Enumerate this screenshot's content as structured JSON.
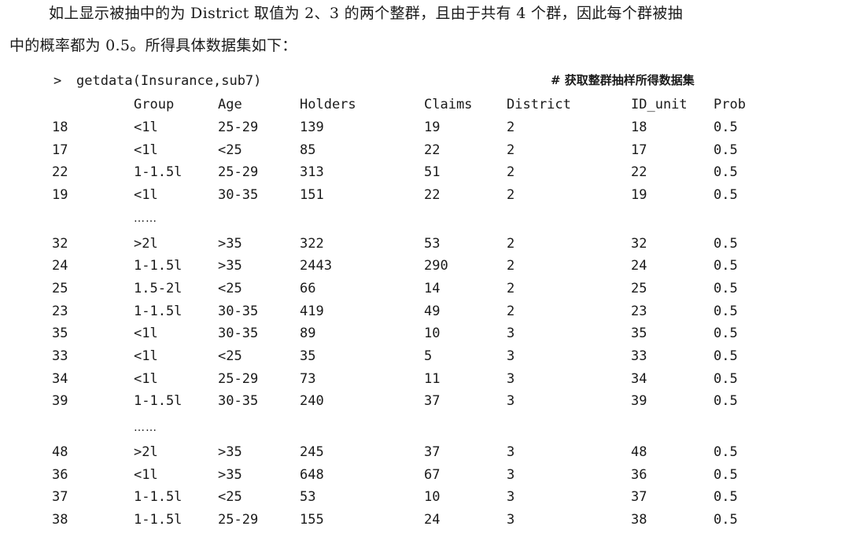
{
  "paragraph": {
    "line1": "如上显示被抽中的为 District 取值为 2、3 的两个整群，且由于共有 4 个群，因此每个群被抽",
    "line2": "中的概率都为 0.5。所得具体数据集如下："
  },
  "command": {
    "prompt": ">",
    "code": "getdata(Insurance,sub7)",
    "comment": "# 获取整群抽样所得数据集"
  },
  "table": {
    "headers": [
      "Group",
      "Age",
      "Holders",
      "Claims",
      "District",
      "ID_unit",
      "Prob"
    ],
    "ellipsis": "……",
    "rows": [
      [
        "18",
        "<1l",
        "25-29",
        "139",
        "19",
        "2",
        "18",
        "0.5"
      ],
      [
        "17",
        "<1l",
        "<25",
        "85",
        "22",
        "2",
        "17",
        "0.5"
      ],
      [
        "22",
        "1-1.5l",
        "25-29",
        "313",
        "51",
        "2",
        "22",
        "0.5"
      ],
      [
        "19",
        "<1l",
        "30-35",
        "151",
        "22",
        "2",
        "19",
        "0.5"
      ],
      [
        "32",
        ">2l",
        ">35",
        "322",
        "53",
        "2",
        "32",
        "0.5"
      ],
      [
        "24",
        "1-1.5l",
        ">35",
        "2443",
        "290",
        "2",
        "24",
        "0.5"
      ],
      [
        "25",
        "1.5-2l",
        "<25",
        "66",
        "14",
        "2",
        "25",
        "0.5"
      ],
      [
        "23",
        "1-1.5l",
        "30-35",
        "419",
        "49",
        "2",
        "23",
        "0.5"
      ],
      [
        "35",
        "<1l",
        "30-35",
        "89",
        "10",
        "3",
        "35",
        "0.5"
      ],
      [
        "33",
        "<1l",
        "<25",
        "35",
        "5",
        "3",
        "33",
        "0.5"
      ],
      [
        "34",
        "<1l",
        "25-29",
        "73",
        "11",
        "3",
        "34",
        "0.5"
      ],
      [
        "39",
        "1-1.5l",
        "30-35",
        "240",
        "37",
        "3",
        "39",
        "0.5"
      ],
      [
        "48",
        ">2l",
        ">35",
        "245",
        "37",
        "3",
        "48",
        "0.5"
      ],
      [
        "36",
        "<1l",
        ">35",
        "648",
        "67",
        "3",
        "36",
        "0.5"
      ],
      [
        "37",
        "1-1.5l",
        "<25",
        "53",
        "10",
        "3",
        "37",
        "0.5"
      ],
      [
        "38",
        "1-1.5l",
        "25-29",
        "155",
        "24",
        "3",
        "38",
        "0.5"
      ]
    ]
  }
}
